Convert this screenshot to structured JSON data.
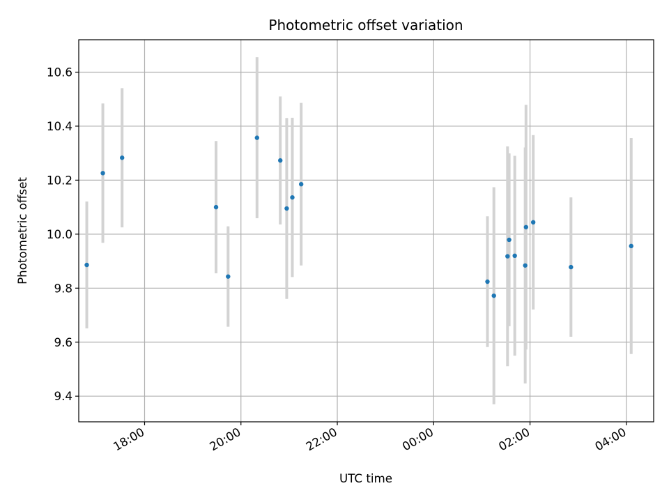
{
  "chart_data": {
    "type": "scatter",
    "title": "Photometric offset variation",
    "xlabel": "UTC time",
    "ylabel": "Photometric offset",
    "x_axis_type": "time",
    "xlim": [
      "16:38",
      "04:34"
    ],
    "ylim": [
      9.305,
      10.72
    ],
    "grid": true,
    "x_ticks": [
      "18:00",
      "20:00",
      "22:00",
      "00:00",
      "02:00",
      "04:00"
    ],
    "y_ticks": [
      "9.4",
      "9.6",
      "9.8",
      "10.0",
      "10.2",
      "10.4",
      "10.6"
    ],
    "points": [
      {
        "t": "16:48",
        "y": 9.886,
        "err": 0.235
      },
      {
        "t": "17:08",
        "y": 10.226,
        "err": 0.258
      },
      {
        "t": "17:32",
        "y": 10.283,
        "err": 0.258
      },
      {
        "t": "19:29",
        "y": 10.1,
        "err": 0.245
      },
      {
        "t": "19:44",
        "y": 9.843,
        "err": 0.186
      },
      {
        "t": "20:20",
        "y": 10.357,
        "err": 0.298
      },
      {
        "t": "20:49",
        "y": 10.273,
        "err": 0.237
      },
      {
        "t": "20:57",
        "y": 10.095,
        "err": 0.335
      },
      {
        "t": "21:04",
        "y": 10.136,
        "err": 0.295
      },
      {
        "t": "21:15",
        "y": 10.185,
        "err": 0.301
      },
      {
        "t": "01:07",
        "y": 9.824,
        "err": 0.242
      },
      {
        "t": "01:15",
        "y": 9.772,
        "err": 0.402
      },
      {
        "t": "01:32",
        "y": 9.918,
        "err": 0.407
      },
      {
        "t": "01:34",
        "y": 9.979,
        "err": 0.32
      },
      {
        "t": "01:41",
        "y": 9.92,
        "err": 0.37
      },
      {
        "t": "01:54",
        "y": 9.884,
        "err": 0.437
      },
      {
        "t": "01:55",
        "y": 10.026,
        "err": 0.453
      },
      {
        "t": "02:04",
        "y": 10.044,
        "err": 0.323
      },
      {
        "t": "02:51",
        "y": 9.878,
        "err": 0.258
      },
      {
        "t": "04:06",
        "y": 9.956,
        "err": 0.4
      }
    ],
    "marker_color": "#1f77b4",
    "errorbar_color": "#d3d3d3",
    "grid_color": "#b0b0b0"
  }
}
